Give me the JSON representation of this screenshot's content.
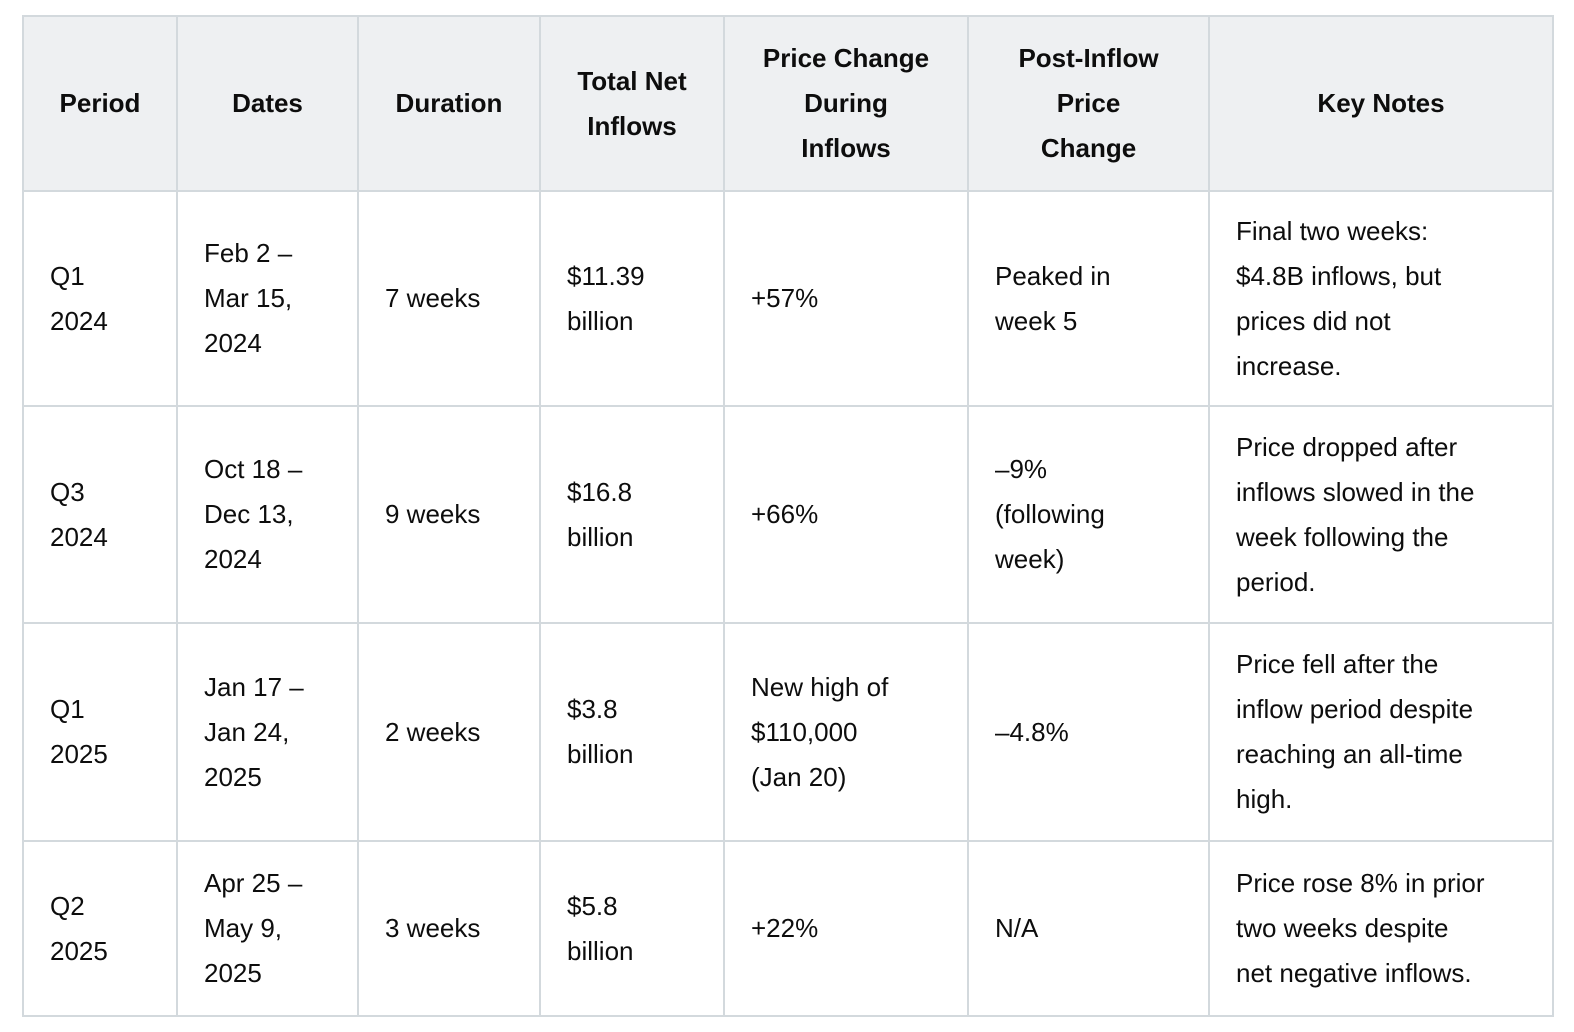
{
  "colors": {
    "header_bg": "#eef0f2",
    "border": "#d3d9dd",
    "text": "#0d0d0d",
    "page_bg": "#ffffff"
  },
  "table": {
    "headers": [
      "Period",
      "Dates",
      "Duration",
      "Total Net\nInflows",
      "Price Change\nDuring\nInflows",
      "Post-Inflow\nPrice\nChange",
      "Key Notes"
    ],
    "rows": [
      [
        "Q1\n2024",
        "Feb 2 –\nMar 15,\n2024",
        "7 weeks",
        "$11.39\nbillion",
        "+57%",
        "Peaked in\nweek 5",
        "Final two weeks:\n$4.8B inflows, but\nprices did not\nincrease."
      ],
      [
        "Q3\n2024",
        "Oct 18 –\nDec 13,\n2024",
        "9 weeks",
        "$16.8\nbillion",
        "+66%",
        "–9%\n(following\nweek)",
        "Price dropped after\ninflows slowed in the\nweek following the\nperiod."
      ],
      [
        "Q1\n2025",
        "Jan 17 –\nJan 24,\n2025",
        "2 weeks",
        "$3.8\nbillion",
        "New high of\n$110,000\n(Jan 20)",
        "–4.8%",
        "Price fell after the\ninflow period despite\nreaching an all-time\nhigh."
      ],
      [
        "Q2\n2025",
        "Apr 25 –\nMay 9,\n2025",
        "3 weeks",
        "$5.8\nbillion",
        "+22%",
        "N/A",
        "Price rose 8% in prior\ntwo weeks despite\nnet negative inflows."
      ]
    ]
  }
}
